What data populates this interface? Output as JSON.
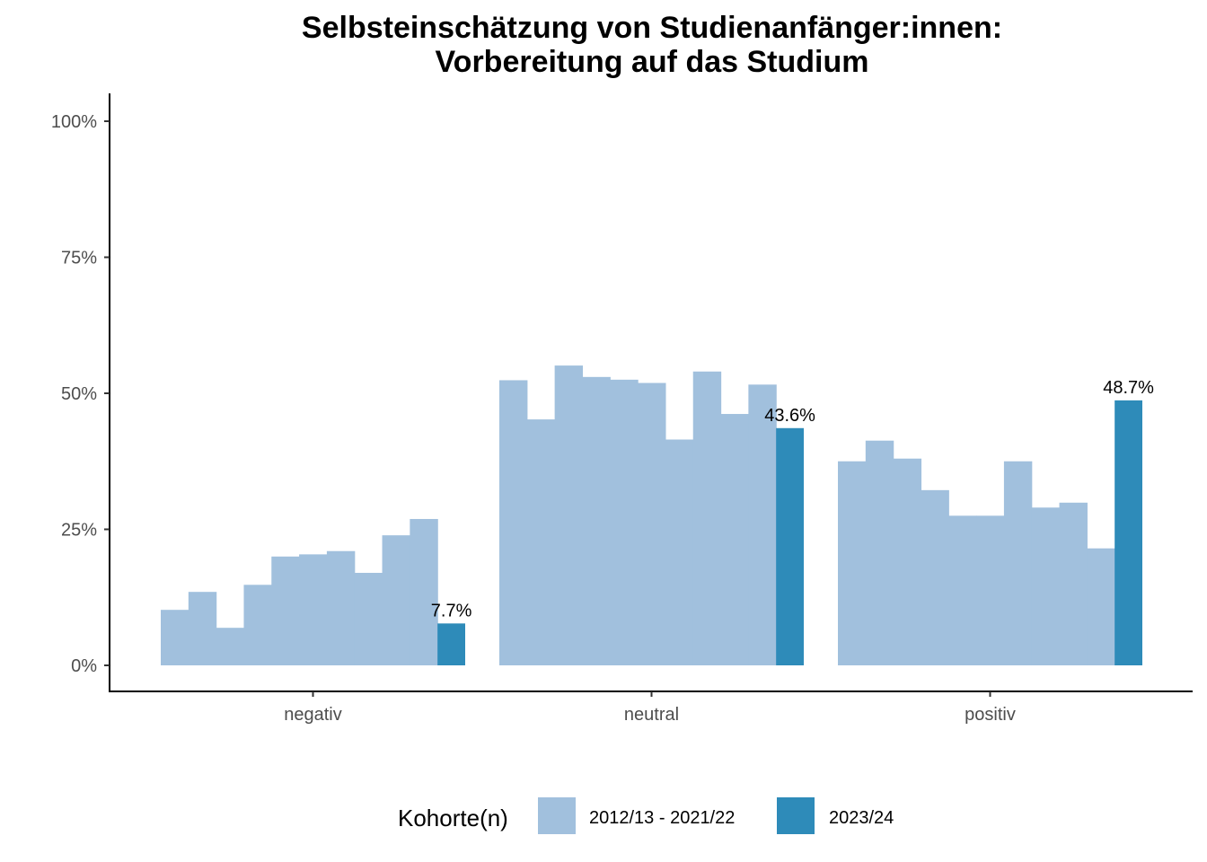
{
  "chart_data": {
    "type": "bar",
    "title": "Selbsteinschätzung von Studienanfänger:innen:",
    "subtitle": "Vorbereitung auf das Studium",
    "xlabel": "",
    "ylabel": "",
    "ylim": [
      0,
      100
    ],
    "y_ticks": [
      0,
      25,
      50,
      75,
      100
    ],
    "y_tick_labels": [
      "0%",
      "25%",
      "50%",
      "75%",
      "100%"
    ],
    "categories": [
      "negativ",
      "neutral",
      "positiv"
    ],
    "series": [
      {
        "name": "2012/13 - 2021/22",
        "color": "#a1c0dd",
        "values_by_category": [
          [
            10.2,
            13.5,
            6.9,
            14.8,
            20.0,
            20.4,
            21.0,
            17.0,
            23.9,
            26.9
          ],
          [
            52.4,
            45.2,
            55.1,
            53.0,
            52.5,
            51.9,
            41.5,
            54.0,
            46.2,
            51.6
          ],
          [
            37.5,
            41.3,
            38.0,
            32.2,
            27.5,
            27.5,
            37.5,
            29.0,
            29.9,
            21.5
          ]
        ]
      },
      {
        "name": "2023/24",
        "color": "#2e8bb9",
        "values": [
          7.7,
          43.6,
          48.7
        ],
        "value_labels": [
          "7.7%",
          "43.6%",
          "48.7%"
        ]
      }
    ],
    "legend": {
      "title": "Kohorte(n)",
      "position": "bottom",
      "entries": [
        "2012/13 - 2021/22",
        "2023/24"
      ]
    }
  }
}
